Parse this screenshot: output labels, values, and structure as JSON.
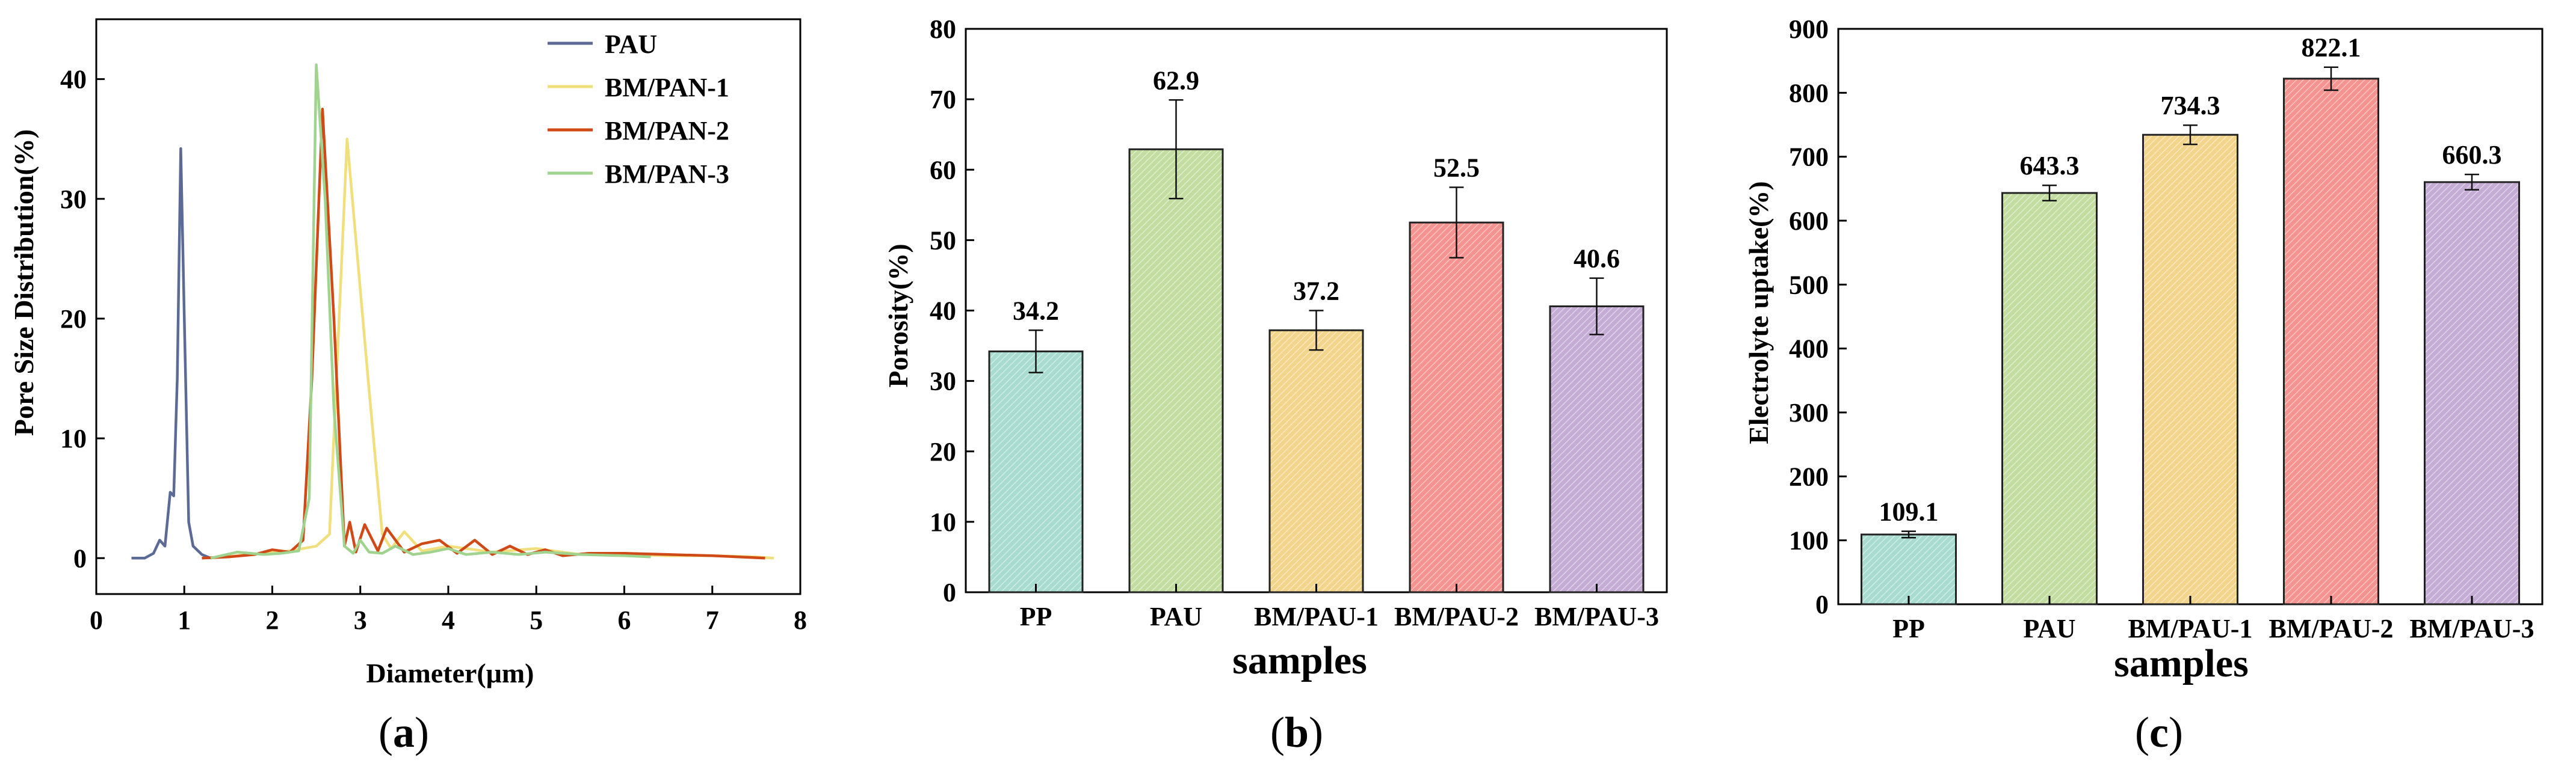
{
  "colors": {
    "PAU_line": "#5c6a96",
    "BM_PAN_1_line": "#f0df7c",
    "BM_PAN_2_line": "#d04a18",
    "BM_PAN_3_line": "#9fd38e",
    "bar_PP": "#a8dcd0",
    "bar_PAU": "#c3dda0",
    "bar_BM_PAU_1": "#f2d58a",
    "bar_BM_PAU_2": "#f4938f",
    "bar_BM_PAU_3": "#c5acd4"
  },
  "chart_data": [
    {
      "id": "a",
      "type": "line",
      "panel_label": "(a)",
      "panel_letter": "a",
      "xlabel": "Diameter(μm)",
      "ylabel": "Pore Size Distribution(%)",
      "xlim": [
        0,
        8
      ],
      "ylim": [
        -3,
        45
      ],
      "xticks": [
        "0",
        "1",
        "2",
        "3",
        "4",
        "5",
        "6",
        "7",
        "8"
      ],
      "yticks": [
        "0",
        "10",
        "20",
        "30",
        "40"
      ],
      "legend_position": "top-right",
      "series": [
        {
          "name": "PAU",
          "color_key": "PAU_line",
          "x": [
            0.4,
            0.55,
            0.65,
            0.72,
            0.78,
            0.84,
            0.88,
            0.92,
            0.96,
            1.0,
            1.05,
            1.1,
            1.2,
            1.3
          ],
          "y": [
            0,
            0,
            0.4,
            1.5,
            1.0,
            5.5,
            5.2,
            15,
            34.2,
            20,
            3.0,
            1.0,
            0.3,
            0
          ]
        },
        {
          "name": "BM/PAN-1",
          "color_key": "BM_PAN_1_line",
          "x": [
            1.3,
            1.6,
            1.9,
            2.2,
            2.5,
            2.65,
            2.85,
            3.1,
            3.25,
            3.35,
            3.5,
            3.7,
            4.0,
            4.5,
            5.0,
            5.5,
            6.0,
            6.5,
            7.0,
            7.5,
            7.7
          ],
          "y": [
            0,
            0.2,
            0.4,
            0.6,
            1.0,
            2.0,
            35.0,
            14.0,
            2.0,
            0.8,
            2.2,
            0.6,
            1.0,
            0.5,
            0.8,
            0.3,
            0.3,
            0.2,
            0.2,
            0.1,
            0
          ]
        },
        {
          "name": "BM/PAN-2",
          "color_key": "BM_PAN_2_line",
          "x": [
            1.2,
            1.5,
            1.8,
            2.0,
            2.2,
            2.35,
            2.45,
            2.57,
            2.7,
            2.82,
            2.88,
            2.95,
            3.05,
            3.2,
            3.3,
            3.5,
            3.7,
            3.9,
            4.1,
            4.3,
            4.5,
            4.7,
            4.9,
            5.1,
            5.3,
            5.6,
            6.0,
            6.5,
            7.0,
            7.6
          ],
          "y": [
            0,
            0.1,
            0.3,
            0.7,
            0.5,
            1.5,
            15,
            37.5,
            20,
            1.0,
            3.0,
            0.5,
            2.8,
            0.6,
            2.5,
            0.5,
            1.2,
            1.5,
            0.4,
            1.5,
            0.3,
            1.0,
            0.3,
            0.7,
            0.2,
            0.4,
            0.4,
            0.3,
            0.2,
            0
          ]
        },
        {
          "name": "BM/PAN-3",
          "color_key": "BM_PAN_3_line",
          "x": [
            1.3,
            1.6,
            1.9,
            2.1,
            2.3,
            2.42,
            2.5,
            2.6,
            2.7,
            2.82,
            2.92,
            3.0,
            3.1,
            3.25,
            3.4,
            3.6,
            3.8,
            4.0,
            4.2,
            4.5,
            4.8,
            5.1,
            5.5,
            6.0,
            6.3
          ],
          "y": [
            0,
            0.5,
            0.3,
            0.4,
            0.6,
            5.0,
            41.2,
            30,
            12.5,
            1.0,
            0.4,
            1.5,
            0.5,
            0.4,
            1.0,
            0.3,
            0.5,
            0.8,
            0.3,
            0.5,
            0.3,
            0.5,
            0.3,
            0.2,
            0.1
          ]
        }
      ]
    },
    {
      "id": "b",
      "type": "bar",
      "panel_label": "(b)",
      "panel_letter": "b",
      "xlabel": "samples",
      "ylabel": "Porosity(%)",
      "ylim": [
        0,
        80
      ],
      "yticks": [
        "0",
        "10",
        "20",
        "30",
        "40",
        "50",
        "60",
        "70",
        "80"
      ],
      "categories": [
        "PP",
        "PAU",
        "BM/PAU-1",
        "BM/PAU-2",
        "BM/PAU-3"
      ],
      "values": [
        34.2,
        62.9,
        37.2,
        52.5,
        40.6
      ],
      "errors": [
        3.0,
        7.0,
        2.8,
        5.0,
        4.0
      ],
      "data_labels": [
        "34.2",
        "62.9",
        "37.2",
        "52.5",
        "40.6"
      ],
      "color_keys": [
        "bar_PP",
        "bar_PAU",
        "bar_BM_PAU_1",
        "bar_BM_PAU_2",
        "bar_BM_PAU_3"
      ]
    },
    {
      "id": "c",
      "type": "bar",
      "panel_label": "(c)",
      "panel_letter": "c",
      "xlabel": "samples",
      "ylabel": "Electrolyte uptake(%)",
      "ylim": [
        0,
        900
      ],
      "yticks": [
        "0",
        "100",
        "200",
        "300",
        "400",
        "500",
        "600",
        "700",
        "800",
        "900"
      ],
      "categories": [
        "PP",
        "PAU",
        "BM/PAU-1",
        "BM/PAU-2",
        "BM/PAU-3"
      ],
      "values": [
        109.1,
        643.3,
        734.3,
        822.1,
        660.3
      ],
      "errors": [
        5,
        12,
        15,
        18,
        12
      ],
      "data_labels": [
        "109.1",
        "643.3",
        "734.3",
        "822.1",
        "660.3"
      ],
      "color_keys": [
        "bar_PP",
        "bar_PAU",
        "bar_BM_PAU_1",
        "bar_BM_PAU_2",
        "bar_BM_PAU_3"
      ]
    }
  ]
}
